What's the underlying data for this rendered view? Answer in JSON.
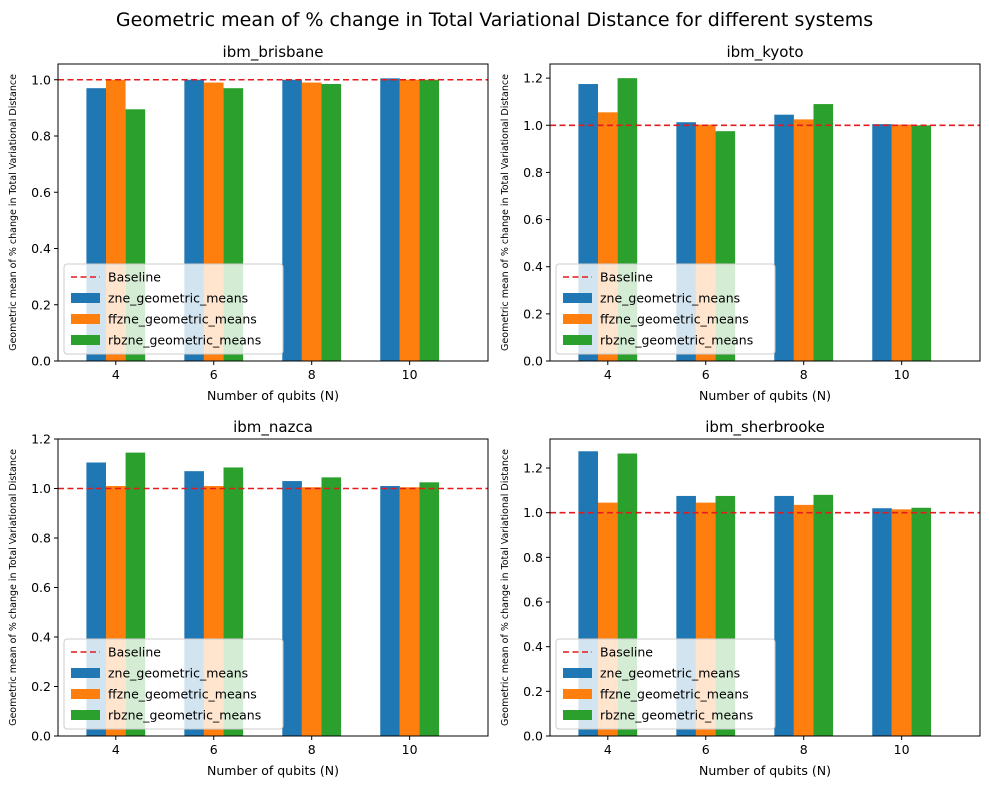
{
  "figure": {
    "title": "Geometric mean of % change in Total Variational Distance for different systems"
  },
  "colors": {
    "zne": "#1f77b4",
    "ffzne": "#ff7f0e",
    "rbzne": "#2ca02c",
    "baseline": "#e41a1c"
  },
  "chart_data": [
    {
      "type": "bar",
      "title": "ibm_brisbane",
      "xlabel": "Number of qubits (N)",
      "ylabel": "Geometric mean of % change in Total Variational Distance",
      "categories": [
        "4",
        "6",
        "8",
        "10"
      ],
      "series": [
        {
          "name": "zne_geometric_means",
          "values": [
            0.97,
            1.0,
            1.0,
            1.005
          ]
        },
        {
          "name": "ffzne_geometric_means",
          "values": [
            1.0,
            0.99,
            0.99,
            1.0
          ]
        },
        {
          "name": "rbzne_geometric_means",
          "values": [
            0.895,
            0.97,
            0.985,
            1.0
          ]
        }
      ],
      "baseline": {
        "name": "Baseline",
        "value": 1.0
      },
      "ylim": [
        0,
        1.056
      ],
      "yticks": [
        "0.0",
        "0.2",
        "0.4",
        "0.6",
        "0.8",
        "1.0"
      ],
      "legend_position": "lower-left"
    },
    {
      "type": "bar",
      "title": "ibm_kyoto",
      "xlabel": "Number of qubits (N)",
      "ylabel": "Geometric mean of % change in Total Variational Distance",
      "categories": [
        "4",
        "6",
        "8",
        "10"
      ],
      "series": [
        {
          "name": "zne_geometric_means",
          "values": [
            1.175,
            1.013,
            1.045,
            1.005
          ]
        },
        {
          "name": "ffzne_geometric_means",
          "values": [
            1.055,
            1.003,
            1.025,
            1.003
          ]
        },
        {
          "name": "rbzne_geometric_means",
          "values": [
            1.2,
            0.975,
            1.09,
            1.0
          ]
        }
      ],
      "baseline": {
        "name": "Baseline",
        "value": 1.0
      },
      "ylim": [
        0,
        1.26
      ],
      "yticks": [
        "0.0",
        "0.2",
        "0.4",
        "0.6",
        "0.8",
        "1.0",
        "1.2"
      ],
      "legend_position": "lower-left"
    },
    {
      "type": "bar",
      "title": "ibm_nazca",
      "xlabel": "Number of qubits (N)",
      "ylabel": "Geometric mean of % change in Total Variational Distance",
      "categories": [
        "4",
        "6",
        "8",
        "10"
      ],
      "series": [
        {
          "name": "zne_geometric_means",
          "values": [
            1.105,
            1.07,
            1.03,
            1.01
          ]
        },
        {
          "name": "ffzne_geometric_means",
          "values": [
            1.01,
            1.01,
            1.005,
            1.005
          ]
        },
        {
          "name": "rbzne_geometric_means",
          "values": [
            1.145,
            1.085,
            1.045,
            1.025
          ]
        }
      ],
      "baseline": {
        "name": "Baseline",
        "value": 1.0
      },
      "ylim": [
        0,
        1.2
      ],
      "yticks": [
        "0.0",
        "0.2",
        "0.4",
        "0.6",
        "0.8",
        "1.0",
        "1.2"
      ],
      "legend_position": "lower-left"
    },
    {
      "type": "bar",
      "title": "ibm_sherbrooke",
      "xlabel": "Number of qubits (N)",
      "ylabel": "Geometric mean of % change in Total Variational Distance",
      "categories": [
        "4",
        "6",
        "8",
        "10"
      ],
      "series": [
        {
          "name": "zne_geometric_means",
          "values": [
            1.275,
            1.075,
            1.075,
            1.02
          ]
        },
        {
          "name": "ffzne_geometric_means",
          "values": [
            1.045,
            1.045,
            1.035,
            1.015
          ]
        },
        {
          "name": "rbzne_geometric_means",
          "values": [
            1.265,
            1.075,
            1.08,
            1.022
          ]
        }
      ],
      "baseline": {
        "name": "Baseline",
        "value": 1.0
      },
      "ylim": [
        0,
        1.33
      ],
      "yticks": [
        "0.0",
        "0.2",
        "0.4",
        "0.6",
        "0.8",
        "1.0",
        "1.2"
      ],
      "legend_position": "lower-left"
    }
  ]
}
